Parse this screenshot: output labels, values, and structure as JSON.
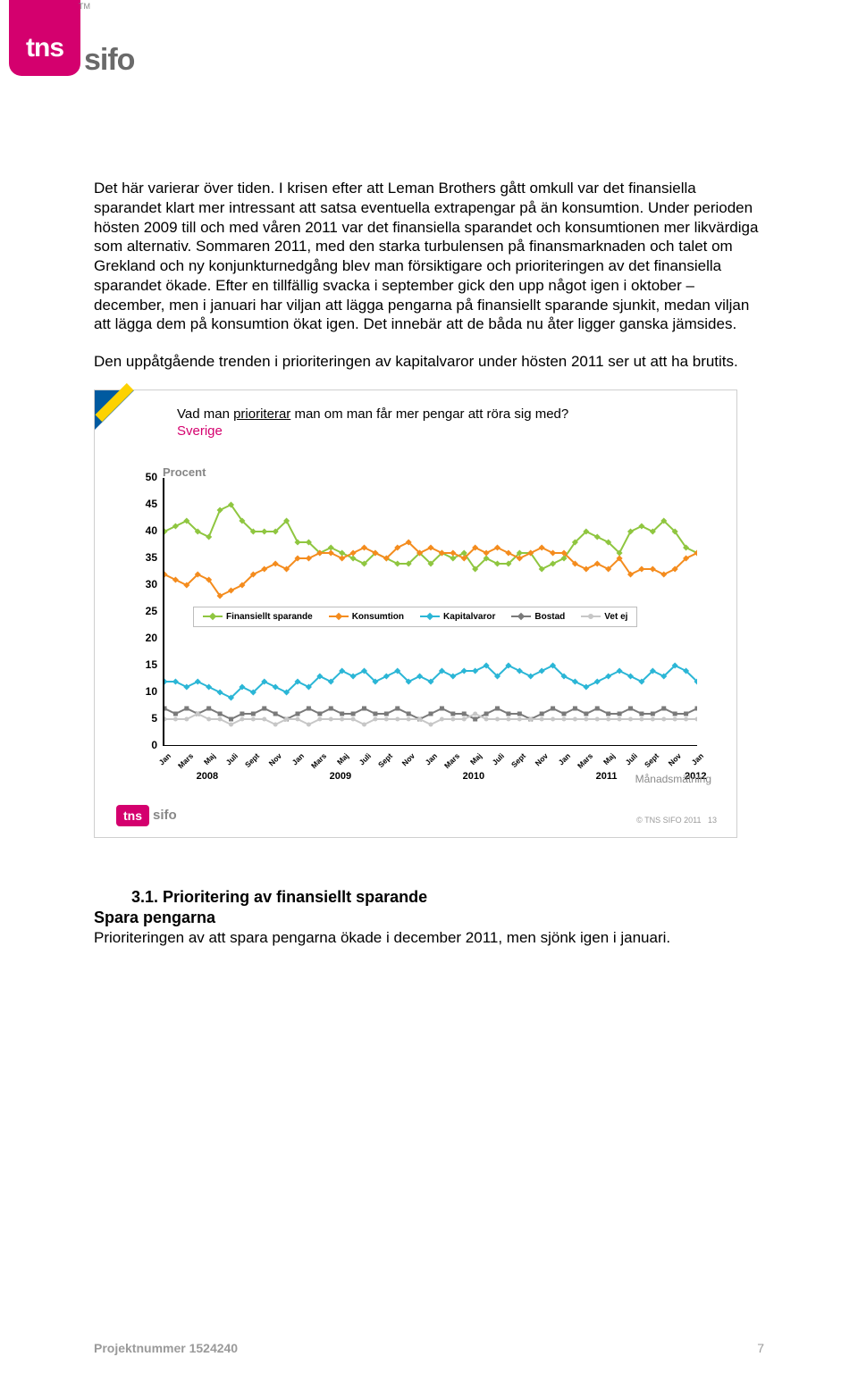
{
  "logo": {
    "brand1": "tns",
    "brand2": "sifo",
    "tm": "TM"
  },
  "paragraphs": {
    "p1": "Det här varierar över tiden. I krisen efter att Leman Brothers gått omkull var det finansiella sparandet klart mer intressant att satsa eventuella extrapengar på än konsumtion. Under perioden hösten 2009 till och med våren 2011 var det finansiella sparandet och konsumtionen mer likvärdiga som alternativ. Sommaren 2011, med den starka turbulensen på finansmarknaden och talet om Grekland och ny konjunkturnedgång blev man försiktigare och prioriteringen av det finansiella sparandet ökade. Efter en tillfällig svacka i september gick den upp något igen i oktober – december, men i januari har viljan att lägga pengarna på finansiellt sparande sjunkit, medan viljan att lägga dem på konsumtion ökat igen. Det innebär att de båda nu åter ligger ganska jämsides.",
    "p2": "Den uppåtgående trenden i prioriteringen av kapitalvaror under hösten 2011 ser ut att ha brutits."
  },
  "chart": {
    "title_pre": "Vad man ",
    "title_ul": "prioriterar",
    "title_post": " man om man får mer pengar att röra sig med?",
    "subtitle": "Sverige",
    "y_label": "Procent",
    "ylim": [
      0,
      50
    ],
    "ytick_step": 5,
    "y_ticks": [
      "50",
      "45",
      "40",
      "35",
      "30",
      "25",
      "20",
      "15",
      "10",
      "5",
      "0"
    ],
    "background_color": "#ffffff",
    "axis_color": "#000000",
    "months_cycle": [
      "Jan",
      "Mars",
      "Maj",
      "Juli",
      "Sept",
      "Nov"
    ],
    "years": [
      "2008",
      "2009",
      "2010",
      "2011",
      "2012"
    ],
    "x_footer": "Månadsmätning",
    "series": {
      "finansiellt": {
        "label": "Finansiellt sparande",
        "color": "#8fc640",
        "marker": "diamond",
        "values": [
          40,
          41,
          42,
          40,
          39,
          44,
          45,
          42,
          40,
          40,
          40,
          42,
          38,
          38,
          36,
          37,
          36,
          35,
          34,
          36,
          35,
          34,
          34,
          36,
          34,
          36,
          35,
          36,
          33,
          35,
          34,
          34,
          36,
          36,
          33,
          34,
          35,
          38,
          40,
          39,
          38,
          36,
          40,
          41,
          40,
          42,
          40,
          37,
          36
        ]
      },
      "konsumtion": {
        "label": "Konsumtion",
        "color": "#f48c1e",
        "marker": "diamond",
        "values": [
          32,
          31,
          30,
          32,
          31,
          28,
          29,
          30,
          32,
          33,
          34,
          33,
          35,
          35,
          36,
          36,
          35,
          36,
          37,
          36,
          35,
          37,
          38,
          36,
          37,
          36,
          36,
          35,
          37,
          36,
          37,
          36,
          35,
          36,
          37,
          36,
          36,
          34,
          33,
          34,
          33,
          35,
          32,
          33,
          33,
          32,
          33,
          35,
          36
        ]
      },
      "kapitalvaror": {
        "label": "Kapitalvaror",
        "color": "#2bb6d6",
        "marker": "diamond",
        "values": [
          12,
          12,
          11,
          12,
          11,
          10,
          9,
          11,
          10,
          12,
          11,
          10,
          12,
          11,
          13,
          12,
          14,
          13,
          14,
          12,
          13,
          14,
          12,
          13,
          12,
          14,
          13,
          14,
          14,
          15,
          13,
          15,
          14,
          13,
          14,
          15,
          13,
          12,
          11,
          12,
          13,
          14,
          13,
          12,
          14,
          13,
          15,
          14,
          12
        ]
      },
      "bostad": {
        "label": "Bostad",
        "color": "#7a7a7a",
        "marker": "triangle",
        "values": [
          7,
          6,
          7,
          6,
          7,
          6,
          5,
          6,
          6,
          7,
          6,
          5,
          6,
          7,
          6,
          7,
          6,
          6,
          7,
          6,
          6,
          7,
          6,
          5,
          6,
          7,
          6,
          6,
          5,
          6,
          7,
          6,
          6,
          5,
          6,
          7,
          6,
          7,
          6,
          7,
          6,
          6,
          7,
          6,
          6,
          7,
          6,
          6,
          7
        ]
      },
      "vetej": {
        "label": "Vet ej",
        "color": "#c7c7c7",
        "marker": "circle",
        "values": [
          5,
          5,
          5,
          6,
          5,
          5,
          4,
          5,
          5,
          5,
          4,
          5,
          5,
          4,
          5,
          5,
          5,
          5,
          4,
          5,
          5,
          5,
          5,
          5,
          4,
          5,
          5,
          5,
          6,
          5,
          5,
          5,
          5,
          5,
          5,
          5,
          5,
          5,
          5,
          5,
          5,
          5,
          5,
          5,
          5,
          5,
          5,
          5,
          5
        ]
      }
    },
    "copyright": "© TNS SIFO 2011",
    "slide_no": "13"
  },
  "section": {
    "number": "3.1.",
    "title": "Prioritering av finansiellt sparande",
    "sub": "Spara pengarna",
    "body": "Prioriteringen av att spara pengarna ökade i december 2011, men sjönk igen i januari."
  },
  "footer": {
    "proj": "Projektnummer 1524240",
    "page": "7"
  }
}
